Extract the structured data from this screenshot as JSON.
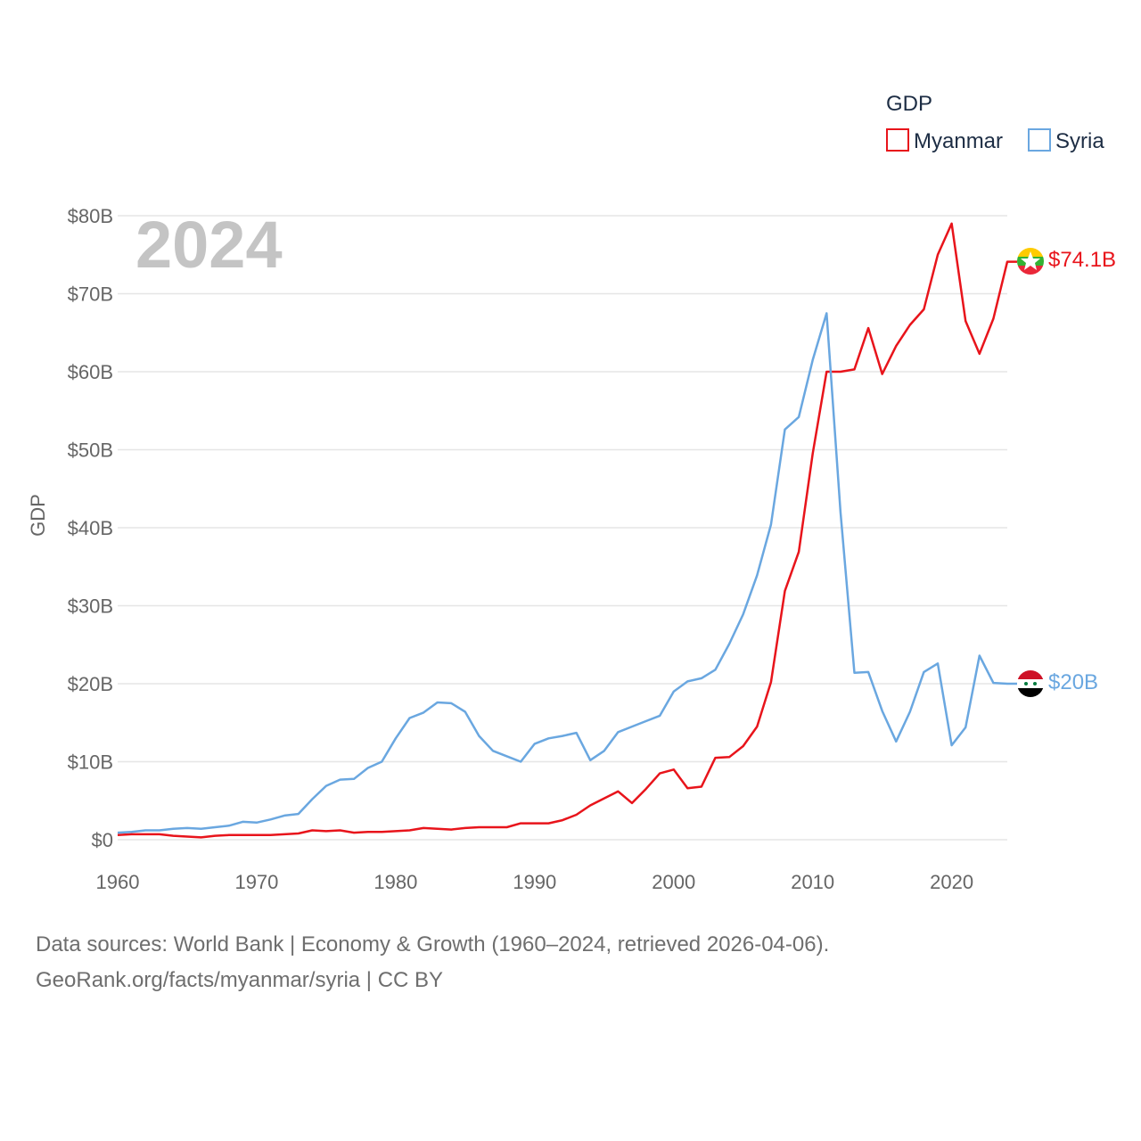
{
  "chart_data": {
    "type": "line",
    "year_label": "2024",
    "ylabel": "GDP",
    "ylim": [
      0,
      80
    ],
    "y_ticks": [
      0,
      10,
      20,
      30,
      40,
      50,
      60,
      70,
      80
    ],
    "y_tick_labels": [
      "$0",
      "$10B",
      "$20B",
      "$30B",
      "$40B",
      "$50B",
      "$60B",
      "$70B",
      "$80B"
    ],
    "xlim": [
      1960,
      2024
    ],
    "x_ticks": [
      1960,
      1970,
      1980,
      1990,
      2000,
      2010,
      2020
    ],
    "x_tick_labels": [
      "1960",
      "1970",
      "1980",
      "1990",
      "2000",
      "2010",
      "2020"
    ],
    "legend": {
      "title": "GDP",
      "position": "top-right"
    },
    "x": [
      1960,
      1961,
      1962,
      1963,
      1964,
      1965,
      1966,
      1967,
      1968,
      1969,
      1970,
      1971,
      1972,
      1973,
      1974,
      1975,
      1976,
      1977,
      1978,
      1979,
      1980,
      1981,
      1982,
      1983,
      1984,
      1985,
      1986,
      1987,
      1988,
      1989,
      1990,
      1991,
      1992,
      1993,
      1994,
      1995,
      1996,
      1997,
      1998,
      1999,
      2000,
      2001,
      2002,
      2003,
      2004,
      2005,
      2006,
      2007,
      2008,
      2009,
      2010,
      2011,
      2012,
      2013,
      2014,
      2015,
      2016,
      2017,
      2018,
      2019,
      2020,
      2021,
      2022,
      2023,
      2024
    ],
    "series": [
      {
        "name": "Myanmar",
        "color": "#e8141b",
        "end_label": "$74.1B",
        "values": [
          0.6,
          0.7,
          0.7,
          0.7,
          0.5,
          0.4,
          0.3,
          0.5,
          0.6,
          0.6,
          0.6,
          0.6,
          0.7,
          0.8,
          1.2,
          1.1,
          1.2,
          0.9,
          1.0,
          1.0,
          1.1,
          1.2,
          1.5,
          1.4,
          1.3,
          1.5,
          1.6,
          1.6,
          1.6,
          2.1,
          2.1,
          2.1,
          2.5,
          3.2,
          4.4,
          5.3,
          6.2,
          4.7,
          6.5,
          8.5,
          9.0,
          6.6,
          6.8,
          10.5,
          10.6,
          12.0,
          14.5,
          20.2,
          31.9,
          36.9,
          49.5,
          60.0,
          60.0,
          60.3,
          65.6,
          59.7,
          63.3,
          66.0,
          68.0,
          75.0,
          79.0,
          66.5,
          62.3,
          66.8,
          74.1
        ]
      },
      {
        "name": "Syria",
        "color": "#6aa7e0",
        "end_label": "$20B",
        "values": [
          0.9,
          1.0,
          1.2,
          1.2,
          1.4,
          1.5,
          1.4,
          1.6,
          1.8,
          2.3,
          2.2,
          2.6,
          3.1,
          3.3,
          5.2,
          6.9,
          7.7,
          7.8,
          9.2,
          10.0,
          13.0,
          15.6,
          16.3,
          17.6,
          17.5,
          16.4,
          13.3,
          11.4,
          10.7,
          10.0,
          12.3,
          13.0,
          13.3,
          13.7,
          10.2,
          11.4,
          13.8,
          14.5,
          15.2,
          15.9,
          19.0,
          20.3,
          20.7,
          21.8,
          25.1,
          28.9,
          33.9,
          40.4,
          52.6,
          54.2,
          61.5,
          67.5,
          42.0,
          21.4,
          21.5,
          16.5,
          12.6,
          16.4,
          21.5,
          22.6,
          12.1,
          14.4,
          23.6,
          20.1,
          20.0
        ]
      }
    ]
  },
  "footer": {
    "line1": "Data sources: World Bank | Economy & Growth (1960–2024, retrieved 2026-04-06).",
    "line2": "GeoRank.org/facts/myanmar/syria | CC BY"
  }
}
